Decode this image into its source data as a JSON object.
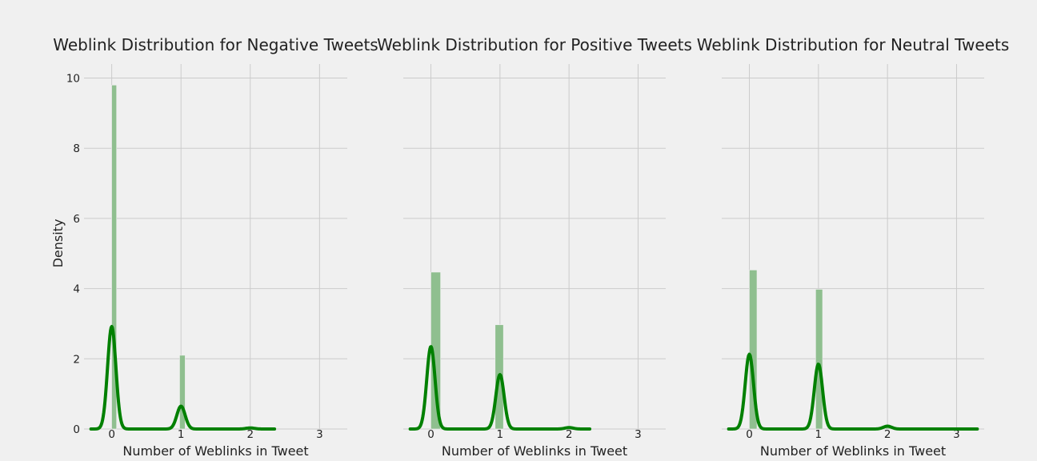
{
  "figure": {
    "background": "#f0f0f0",
    "grid_color": "#cbcbcb",
    "bar_color": "#8fbf8f",
    "kde_color": "#008000",
    "shared_y_label": "Density"
  },
  "chart_data": [
    {
      "type": "histogram+kde",
      "title": "Weblink Distribution for Negative Tweets",
      "xlabel": "Number of Weblinks in Tweet",
      "ylabel": "Density",
      "xlim": [
        -0.4,
        3.4
      ],
      "ylim": [
        0,
        10.4
      ],
      "xticks": [
        0,
        1,
        2,
        3
      ],
      "yticks": [
        0,
        2,
        4,
        6,
        8,
        10
      ],
      "grid": true,
      "bars": [
        {
          "x0": 0.0,
          "x1": 0.07,
          "height": 9.8
        },
        {
          "x0": 0.98,
          "x1": 1.06,
          "height": 2.1
        }
      ],
      "kde_peaks": [
        {
          "x": 0.0,
          "height": 2.92
        },
        {
          "x": 1.0,
          "height": 0.65
        },
        {
          "x": 2.0,
          "height": 0.03
        }
      ],
      "kde_range": [
        -0.3,
        2.35
      ]
    },
    {
      "type": "histogram+kde",
      "title": "Weblink Distribution for Positive Tweets",
      "xlabel": "Number of Weblinks in Tweet",
      "ylabel": "",
      "xlim": [
        -0.4,
        3.4
      ],
      "ylim": [
        0,
        10.4
      ],
      "xticks": [
        0,
        1,
        2,
        3
      ],
      "yticks": [
        0,
        2,
        4,
        6,
        8,
        10
      ],
      "grid": true,
      "bars": [
        {
          "x0": 0.0,
          "x1": 0.14,
          "height": 4.47
        },
        {
          "x0": 0.93,
          "x1": 1.05,
          "height": 2.97
        }
      ],
      "kde_peaks": [
        {
          "x": 0.0,
          "height": 2.35
        },
        {
          "x": 1.0,
          "height": 1.55
        },
        {
          "x": 2.0,
          "height": 0.04
        }
      ],
      "kde_range": [
        -0.3,
        2.3
      ]
    },
    {
      "type": "histogram+kde",
      "title": "Weblink Distribution for Neutral Tweets",
      "xlabel": "Number of Weblinks in Tweet",
      "ylabel": "",
      "xlim": [
        -0.4,
        3.4
      ],
      "ylim": [
        0,
        10.4
      ],
      "xticks": [
        0,
        1,
        2,
        3
      ],
      "yticks": [
        0,
        2,
        4,
        6,
        8,
        10
      ],
      "grid": true,
      "bars": [
        {
          "x0": 0.0,
          "x1": 0.11,
          "height": 4.53
        },
        {
          "x0": 0.96,
          "x1": 1.06,
          "height": 3.98
        },
        {
          "x0": 1.97,
          "x1": 2.06,
          "height": 0.04
        }
      ],
      "kde_peaks": [
        {
          "x": 0.0,
          "height": 2.13
        },
        {
          "x": 1.0,
          "height": 1.85
        },
        {
          "x": 2.0,
          "height": 0.08
        }
      ],
      "kde_range": [
        -0.3,
        3.3
      ]
    }
  ]
}
